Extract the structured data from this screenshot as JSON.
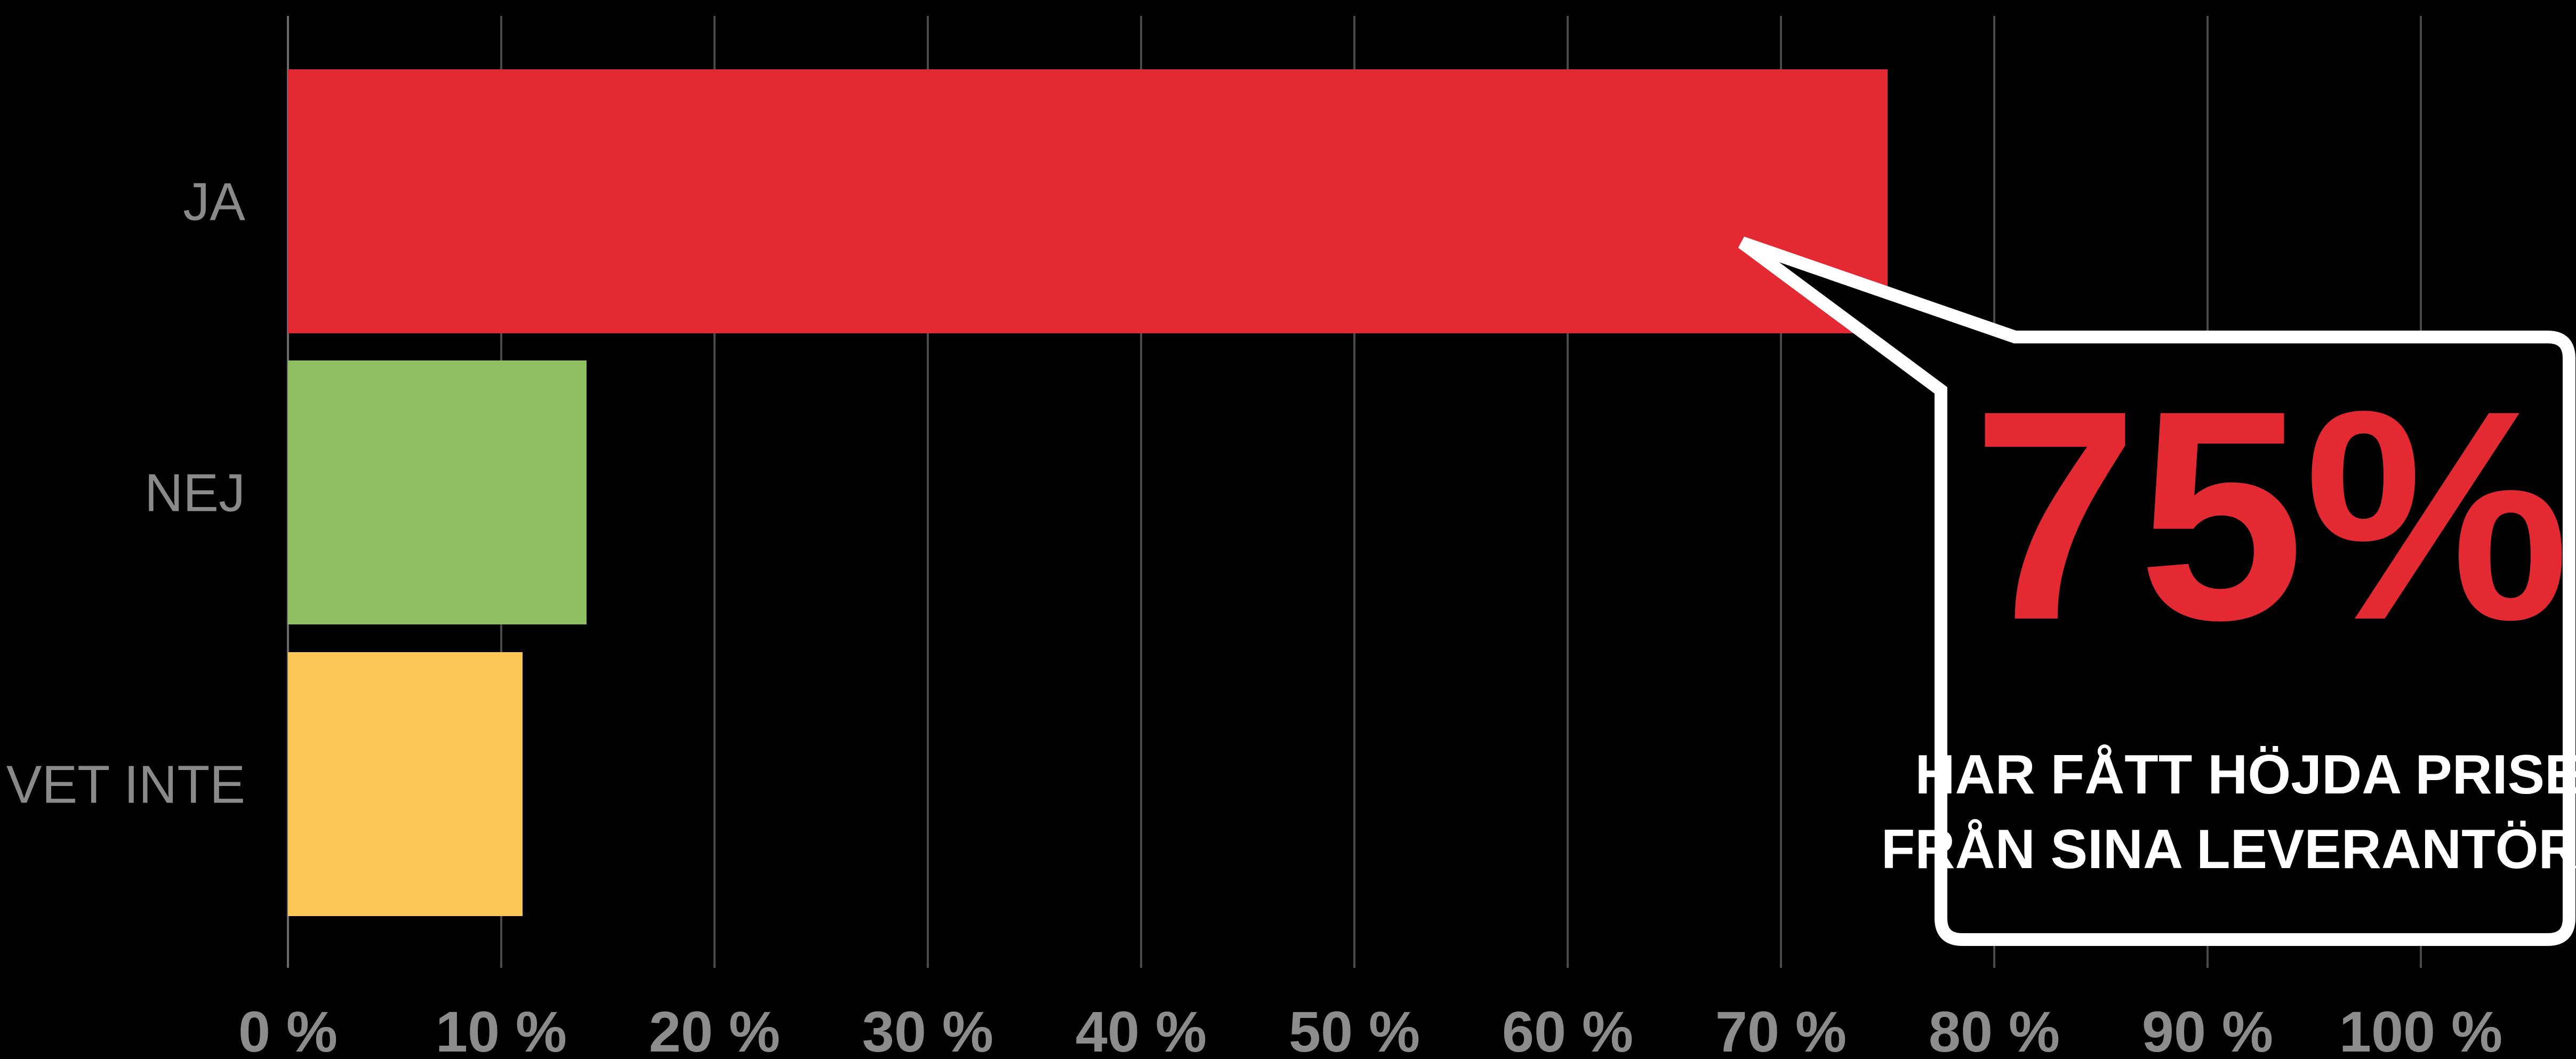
{
  "chart_data": {
    "type": "bar",
    "orientation": "horizontal",
    "categories": [
      "JA",
      "NEJ",
      "VET INTE"
    ],
    "values": [
      75,
      14,
      11
    ],
    "colors": [
      "#e32a33",
      "#8fbf60",
      "#fdc856"
    ],
    "xlim": [
      0,
      100
    ],
    "xticks": [
      0,
      10,
      20,
      30,
      40,
      50,
      60,
      70,
      80,
      90,
      100
    ],
    "xtick_labels": [
      "0 %",
      "10 %",
      "20 %",
      "30 %",
      "40 %",
      "50 %",
      "60 %",
      "70 %",
      "80 %",
      "90 %",
      "100 %"
    ],
    "grid": "vertical",
    "background": "#000000",
    "annotation": {
      "value": "75%",
      "text_lines": [
        "HAR FÅTT HÖJDA PRISER",
        "FRÅN SINA LEVERANTÖRER"
      ],
      "points_to": "JA",
      "value_color": "#e32a33",
      "text_color": "#ffffff",
      "border_color": "#ffffff"
    }
  }
}
